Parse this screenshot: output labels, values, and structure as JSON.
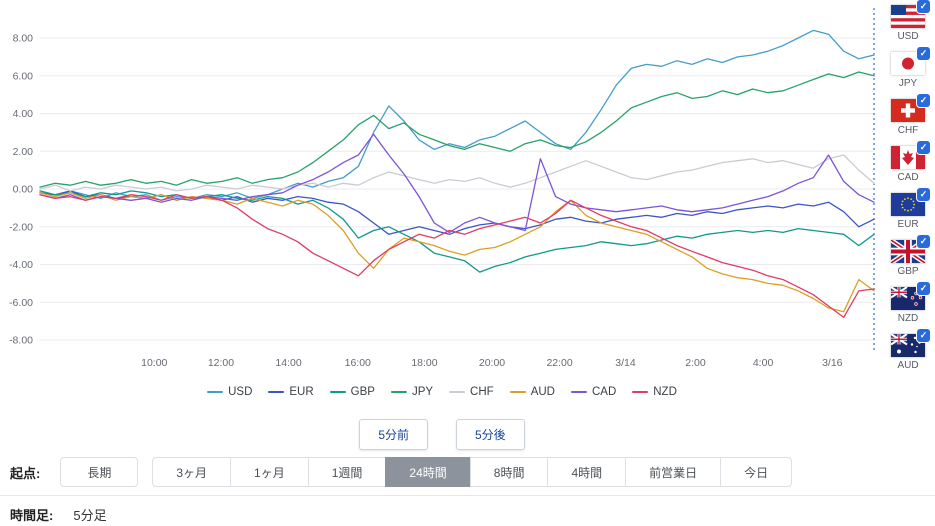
{
  "colors": {
    "grid": "#ebebef",
    "axis_text": "#666b73",
    "marker_blue": "#2e6bd6"
  },
  "chart_data": {
    "type": "line",
    "title": "",
    "xlabel": "",
    "ylabel": "",
    "ylim": [
      -9,
      9
    ],
    "grid": true,
    "legend_position": "bottom",
    "y_axis": {
      "ticks": [
        {
          "label": "8.00",
          "value": 8
        },
        {
          "label": "6.00",
          "value": 6
        },
        {
          "label": "4.00",
          "value": 4
        },
        {
          "label": "2.00",
          "value": 2
        },
        {
          "label": "0.00",
          "value": 0
        },
        {
          "label": "-2.00",
          "value": -2
        },
        {
          "label": "-4.00",
          "value": -4
        },
        {
          "label": "-6.00",
          "value": -6
        },
        {
          "label": "-8.00",
          "value": -8
        }
      ]
    },
    "x_axis": {
      "ticks": [
        {
          "label": "10:00",
          "pos": 13.7
        },
        {
          "label": "12:00",
          "pos": 21.7
        },
        {
          "label": "14:00",
          "pos": 29.8
        },
        {
          "label": "16:00",
          "pos": 38.1
        },
        {
          "label": "18:00",
          "pos": 46.1
        },
        {
          "label": "20:00",
          "pos": 54.2
        },
        {
          "label": "22:00",
          "pos": 62.3
        },
        {
          "label": "3/14",
          "pos": 70.2
        },
        {
          "label": "2:00",
          "pos": 78.6
        },
        {
          "label": "4:00",
          "pos": 86.7
        },
        {
          "label": "3/16",
          "pos": 95.0
        }
      ]
    },
    "current_time_marker": true,
    "series": [
      {
        "name": "USD",
        "color": "#449ccb",
        "values": [
          -0.2,
          -0.4,
          -0.1,
          -0.3,
          -0.5,
          -0.2,
          -0.4,
          -0.3,
          -0.6,
          -0.4,
          -0.5,
          -0.3,
          -0.4,
          -0.2,
          -0.5,
          -0.3,
          0.0,
          0.3,
          0.1,
          0.4,
          0.6,
          1.2,
          3.0,
          4.4,
          3.6,
          2.6,
          2.1,
          2.4,
          2.2,
          2.6,
          2.8,
          3.2,
          3.6,
          3.0,
          2.4,
          2.1,
          3.0,
          4.2,
          5.5,
          6.4,
          6.6,
          6.5,
          6.8,
          6.6,
          6.9,
          6.7,
          7.0,
          7.1,
          7.3,
          7.6,
          8.0,
          8.4,
          8.2,
          7.3,
          6.9,
          7.1
        ]
      },
      {
        "name": "EUR",
        "color": "#3c55c6",
        "values": [
          -0.2,
          -0.3,
          -0.1,
          -0.4,
          -0.3,
          -0.5,
          -0.4,
          -0.5,
          -0.3,
          -0.6,
          -0.4,
          -0.5,
          -0.6,
          -0.4,
          -0.7,
          -0.5,
          -0.6,
          -0.4,
          -0.5,
          -0.7,
          -0.8,
          -1.2,
          -1.8,
          -2.4,
          -2.2,
          -2.0,
          -2.2,
          -2.4,
          -2.1,
          -1.9,
          -1.8,
          -2.0,
          -2.1,
          -1.9,
          -1.6,
          -1.5,
          -1.7,
          -1.8,
          -1.6,
          -1.5,
          -1.4,
          -1.5,
          -1.3,
          -1.4,
          -1.2,
          -1.3,
          -1.1,
          -1.0,
          -0.9,
          -1.0,
          -0.8,
          -0.9,
          -0.7,
          -1.2,
          -2.0,
          -1.6
        ]
      },
      {
        "name": "GBP",
        "color": "#0e9a8d",
        "values": [
          -0.1,
          -0.3,
          -0.2,
          -0.4,
          -0.2,
          -0.3,
          -0.1,
          -0.2,
          -0.4,
          -0.3,
          -0.5,
          -0.4,
          -0.3,
          -0.5,
          -0.6,
          -0.4,
          -0.5,
          -0.8,
          -0.6,
          -1.0,
          -1.6,
          -2.6,
          -2.2,
          -2.0,
          -2.4,
          -2.8,
          -3.4,
          -3.6,
          -3.8,
          -4.4,
          -4.1,
          -3.9,
          -3.6,
          -3.4,
          -3.2,
          -3.1,
          -3.0,
          -2.8,
          -2.9,
          -3.0,
          -2.9,
          -2.7,
          -2.5,
          -2.6,
          -2.4,
          -2.3,
          -2.2,
          -2.3,
          -2.2,
          -2.3,
          -2.1,
          -2.2,
          -2.3,
          -2.4,
          -3.0,
          -2.4
        ]
      },
      {
        "name": "JPY",
        "color": "#26a269",
        "values": [
          0.1,
          0.3,
          0.2,
          0.4,
          0.2,
          0.3,
          0.5,
          0.3,
          0.4,
          0.2,
          0.5,
          0.3,
          0.4,
          0.6,
          0.3,
          0.5,
          0.6,
          0.9,
          1.4,
          2.0,
          2.6,
          3.4,
          3.9,
          3.2,
          3.5,
          2.9,
          2.6,
          2.3,
          2.1,
          2.4,
          2.2,
          2.0,
          2.4,
          2.6,
          2.3,
          2.2,
          2.5,
          3.0,
          3.6,
          4.3,
          4.6,
          4.9,
          5.1,
          4.8,
          4.9,
          5.2,
          5.0,
          5.3,
          5.1,
          5.2,
          5.5,
          5.8,
          6.1,
          5.9,
          6.2,
          6.0
        ]
      },
      {
        "name": "CHF",
        "color": "#c9ccd3",
        "values": [
          0.0,
          0.2,
          -0.1,
          0.1,
          0.0,
          0.2,
          0.1,
          0.0,
          0.1,
          -0.1,
          0.0,
          0.2,
          0.1,
          0.0,
          0.2,
          0.1,
          0.0,
          0.2,
          0.3,
          0.1,
          0.3,
          0.2,
          0.6,
          0.9,
          0.7,
          0.5,
          0.3,
          0.5,
          0.4,
          0.6,
          0.3,
          0.1,
          0.3,
          0.6,
          0.9,
          1.2,
          1.5,
          1.2,
          0.9,
          0.6,
          0.5,
          0.7,
          0.9,
          1.0,
          1.2,
          1.4,
          1.5,
          1.6,
          1.4,
          1.5,
          1.3,
          1.1,
          1.6,
          1.8,
          1.0,
          0.3
        ]
      },
      {
        "name": "AUD",
        "color": "#dc9f24",
        "values": [
          -0.2,
          -0.4,
          -0.2,
          -0.5,
          -0.3,
          -0.6,
          -0.4,
          -0.5,
          -0.3,
          -0.6,
          -0.4,
          -0.5,
          -0.6,
          -0.8,
          -0.5,
          -0.7,
          -0.9,
          -0.6,
          -0.8,
          -1.4,
          -2.2,
          -3.4,
          -4.2,
          -3.2,
          -2.6,
          -2.8,
          -3.0,
          -3.3,
          -3.5,
          -3.2,
          -3.1,
          -2.8,
          -2.4,
          -2.0,
          -1.2,
          -0.6,
          -1.4,
          -1.8,
          -2.0,
          -2.2,
          -2.4,
          -2.8,
          -3.2,
          -3.6,
          -4.2,
          -4.5,
          -4.7,
          -4.8,
          -5.0,
          -5.1,
          -5.4,
          -5.8,
          -6.3,
          -6.5,
          -4.8,
          -5.4
        ]
      },
      {
        "name": "CAD",
        "color": "#7b54d8",
        "values": [
          -0.3,
          -0.5,
          -0.3,
          -0.6,
          -0.4,
          -0.5,
          -0.6,
          -0.5,
          -0.7,
          -0.5,
          -0.6,
          -0.4,
          -0.5,
          -0.6,
          -0.4,
          -0.3,
          -0.2,
          0.2,
          0.5,
          0.9,
          1.4,
          1.8,
          2.9,
          1.8,
          0.8,
          -0.4,
          -1.8,
          -2.3,
          -1.8,
          -1.5,
          -1.8,
          -2.0,
          -2.2,
          1.6,
          -0.4,
          -0.8,
          -1.0,
          -1.1,
          -1.2,
          -1.1,
          -1.0,
          -0.9,
          -1.1,
          -1.2,
          -1.1,
          -1.0,
          -0.8,
          -0.6,
          -0.4,
          -0.1,
          0.3,
          0.6,
          1.8,
          0.4,
          -0.3,
          -0.7
        ]
      },
      {
        "name": "NZD",
        "color": "#e03a64",
        "values": [
          -0.3,
          -0.5,
          -0.4,
          -0.6,
          -0.4,
          -0.5,
          -0.3,
          -0.4,
          -0.6,
          -0.3,
          -0.5,
          -0.4,
          -0.6,
          -1.0,
          -1.6,
          -2.1,
          -2.4,
          -2.8,
          -3.4,
          -3.8,
          -4.2,
          -4.6,
          -3.8,
          -3.2,
          -2.8,
          -2.4,
          -2.6,
          -2.2,
          -2.4,
          -2.1,
          -1.9,
          -1.7,
          -1.5,
          -1.8,
          -1.3,
          -0.6,
          -1.0,
          -1.4,
          -1.7,
          -2.0,
          -2.2,
          -2.6,
          -3.0,
          -3.3,
          -3.6,
          -3.9,
          -4.1,
          -4.3,
          -4.6,
          -4.8,
          -5.2,
          -5.6,
          -6.2,
          -6.8,
          -5.4,
          -5.3
        ]
      }
    ]
  },
  "sidebar": {
    "items": [
      {
        "code": "USD",
        "flag": "us",
        "checked": true
      },
      {
        "code": "JPY",
        "flag": "jp",
        "checked": true
      },
      {
        "code": "CHF",
        "flag": "ch",
        "checked": true
      },
      {
        "code": "CAD",
        "flag": "ca",
        "checked": true
      },
      {
        "code": "EUR",
        "flag": "eu",
        "checked": true
      },
      {
        "code": "GBP",
        "flag": "gb",
        "checked": true
      },
      {
        "code": "NZD",
        "flag": "nz",
        "checked": true
      },
      {
        "code": "AUD",
        "flag": "au",
        "checked": true
      }
    ]
  },
  "controls": {
    "step_back_label": "5分前",
    "step_forward_label": "5分後",
    "origin_label": "起点:",
    "periods": [
      "長期",
      "3ヶ月",
      "1ヶ月",
      "1週間",
      "24時間",
      "8時間",
      "4時間",
      "前営業日",
      "今日"
    ],
    "selected_period": "24時間",
    "timeframe_label": "時間足:",
    "timeframe_value": "5分足"
  }
}
